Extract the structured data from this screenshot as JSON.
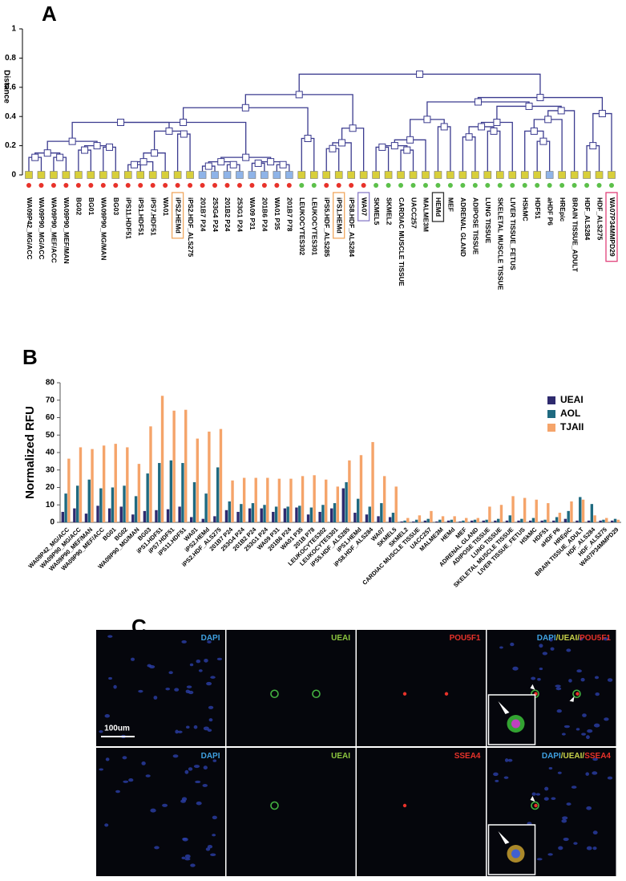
{
  "chart_data": [
    {
      "type": "dendrogram",
      "panel_label": "A",
      "y_label": "Distance",
      "ylim": [
        0,
        1
      ],
      "yticks": [
        0,
        0.2,
        0.4,
        0.6,
        0.8,
        1
      ],
      "leaves": [
        "WA09P42_MG/ACC",
        "WA09P90_MG/ACC",
        "WA09P90_MEF/ACC",
        "WA09P90_MEF/MAN",
        "BG02",
        "BG01",
        "WA09P90_MG/MAN",
        "BG03",
        "iPS11.HDF51",
        "iPS1.HDF51",
        "iPS7.HDF51",
        "WA01",
        "iPS2.HEMd",
        "iPS2.HDF_ALS275",
        "201B7 P24",
        "253G4 P24",
        "201B2 P24",
        "253G1 P24",
        "WA09 P31",
        "201B6 P24",
        "WA01 P35",
        "201B7 P78",
        "LEUKOCYTES302",
        "LEUKOCYTES301",
        "iPS5.HDF_ALS285",
        "iPS1.HEMd",
        "iPS8.HDF_ALS284",
        "WA07",
        "SKMEL5",
        "SKMEL2",
        "CARDIAC MUSCLE TISSUE",
        "UACC257",
        "MALME3M",
        "HEMd",
        "MEF",
        "ADRENAL GLAND",
        "ADIPOSE TISSUE",
        "LUNG TISSUE",
        "SKELETAL MUSCLE TISSUE",
        "LIVER TISSUE_FETUS",
        "HSkMC",
        "HDF51",
        "aHDF P6",
        "HREpic",
        "BRAIN TISSUE_ADULT",
        "HDF_ALS284",
        "HDF_ALS275",
        "WA07P34MMPD29"
      ],
      "leaf_colors": [
        "#d8cf3a",
        "#d8cf3a",
        "#d8cf3a",
        "#d8cf3a",
        "#d8cf3a",
        "#d8cf3a",
        "#d8cf3a",
        "#d8cf3a",
        "#d8cf3a",
        "#d8cf3a",
        "#d8cf3a",
        "#d8cf3a",
        "#d8cf3a",
        "#d8cf3a",
        "#8fb4e8",
        "#8fb4e8",
        "#8fb4e8",
        "#8fb4e8",
        "#8fb4e8",
        "#8fb4e8",
        "#8fb4e8",
        "#8fb4e8",
        "#d8cf3a",
        "#d8cf3a",
        "#d8cf3a",
        "#d8cf3a",
        "#d8cf3a",
        "#d8cf3a",
        "#d8cf3a",
        "#d8cf3a",
        "#d8cf3a",
        "#d8cf3a",
        "#d8cf3a",
        "#d8cf3a",
        "#d8cf3a",
        "#d8cf3a",
        "#d8cf3a",
        "#d8cf3a",
        "#d8cf3a",
        "#d8cf3a",
        "#d8cf3a",
        "#d8cf3a",
        "#8fb4e8",
        "#d8cf3a",
        "#d8cf3a",
        "#d8cf3a",
        "#d8cf3a",
        "#d8cf3a"
      ],
      "dot_colors": [
        "#e8322a",
        "#e8322a",
        "#e8322a",
        "#e8322a",
        "#e8322a",
        "#e8322a",
        "#e8322a",
        "#e8322a",
        "#e8322a",
        "#e8322a",
        "#e8322a",
        "#e8322a",
        "#e8322a",
        "#e8322a",
        "#e8322a",
        "#e8322a",
        "#e8322a",
        "#e8322a",
        "#e8322a",
        "#e8322a",
        "#e8322a",
        "#e8322a",
        "#5cc04a",
        "#5cc04a",
        "#e8322a",
        "#e8322a",
        "#e8322a",
        "#e8322a",
        "#5cc04a",
        "#5cc04a",
        "#5cc04a",
        "#5cc04a",
        "#5cc04a",
        "#5cc04a",
        "#5cc04a",
        "#5cc04a",
        "#5cc04a",
        "#5cc04a",
        "#5cc04a",
        "#5cc04a",
        "#5cc04a",
        "#5cc04a",
        "#5cc04a",
        "#5cc04a",
        "#5cc04a",
        "#5cc04a",
        "#5cc04a",
        "#5cc04a"
      ],
      "merges": [
        [
          0,
          1,
          0.12
        ],
        [
          2,
          3,
          0.12
        ],
        [
          48,
          49,
          0.15
        ],
        [
          4,
          5,
          0.17
        ],
        [
          6,
          7,
          0.19
        ],
        [
          51,
          52,
          0.2
        ],
        [
          50,
          53,
          0.23
        ],
        [
          8,
          9,
          0.07
        ],
        [
          55,
          10,
          0.09
        ],
        [
          56,
          11,
          0.15
        ],
        [
          12,
          13,
          0.28
        ],
        [
          57,
          58,
          0.3
        ],
        [
          54,
          59,
          0.36
        ],
        [
          14,
          15,
          0.06
        ],
        [
          16,
          17,
          0.07
        ],
        [
          61,
          62,
          0.09
        ],
        [
          18,
          19,
          0.08
        ],
        [
          20,
          21,
          0.07
        ],
        [
          64,
          65,
          0.09
        ],
        [
          63,
          66,
          0.12
        ],
        [
          60,
          67,
          0.36
        ],
        [
          22,
          23,
          0.25
        ],
        [
          24,
          25,
          0.18
        ],
        [
          70,
          26,
          0.22
        ],
        [
          71,
          27,
          0.32
        ],
        [
          68,
          69,
          0.46
        ],
        [
          73,
          72,
          0.55
        ],
        [
          28,
          29,
          0.19
        ],
        [
          30,
          31,
          0.17
        ],
        [
          75,
          76,
          0.2
        ],
        [
          77,
          32,
          0.24
        ],
        [
          33,
          34,
          0.33
        ],
        [
          78,
          79,
          0.38
        ],
        [
          35,
          36,
          0.26
        ],
        [
          37,
          38,
          0.3
        ],
        [
          81,
          82,
          0.33
        ],
        [
          39,
          83,
          0.36
        ],
        [
          41,
          42,
          0.23
        ],
        [
          40,
          85,
          0.3
        ],
        [
          86,
          43,
          0.38
        ],
        [
          87,
          44,
          0.44
        ],
        [
          84,
          88,
          0.47
        ],
        [
          80,
          89,
          0.5
        ],
        [
          45,
          46,
          0.2
        ],
        [
          91,
          47,
          0.42
        ],
        [
          90,
          92,
          0.53
        ],
        [
          74,
          93,
          0.69
        ]
      ],
      "link_color": "#3b3b8f",
      "label_boxes": [
        {
          "leaf": 12,
          "color": "#f0a860"
        },
        {
          "leaf": 25,
          "color": "#f0a860"
        },
        {
          "leaf": 27,
          "color": "#8a7cc8"
        },
        {
          "leaf": 33,
          "color": "#333333"
        },
        {
          "leaf": 47,
          "color": "#e0407a"
        }
      ]
    },
    {
      "type": "bar",
      "panel_label": "B",
      "y_label": "Normalized RFU",
      "categories": [
        "WA09P42_MG/ACC",
        "WA09P90_MG/ACC",
        "WA09P90_MEF/MAN",
        "WA09P90_MEF/ACC",
        "BG01",
        "BG02",
        "WA09P90_MG/MAN",
        "BG03",
        "iPS1.HDF51",
        "iPS7.HDF51",
        "iPS11.HDF51",
        "WA01",
        "iPS2.HEMd",
        "iPS2.HDF_ALS275",
        "201B7 P24",
        "253G4 P24",
        "201B2 P24",
        "253G1 P24",
        "WA09 P31",
        "201B6 P24",
        "WA01 P35",
        "201B P78",
        "LEUKOCYTES302",
        "LEUKOCYTES301",
        "iPS5.HDF_ALS285",
        "iPS1.HEMd",
        "iPS8.HDF_ALS284",
        "WA07",
        "SKMEL5",
        "SKMEL2",
        "CARDIAC MUSCLE TISSUE",
        "UACC257",
        "MALME3M",
        "HEMd",
        "MEF",
        "ADRENAL GLAND",
        "ADIPOSE TISSUE",
        "LUNG TISSUE",
        "SKELETAL MUSCLE TISSUE",
        "LIVER TISSUE_FETUS",
        "HSkMC",
        "HDF51",
        "aHDF P6",
        "HREpiC",
        "BRAIN TISSUE_ADULT",
        "HDF_ALS284",
        "HDF_ALS275",
        "WA07P34MMPD29"
      ],
      "series": [
        {
          "name": "UEAI",
          "color": "#2e2a6e",
          "values": [
            6,
            8,
            5,
            9.5,
            8,
            9,
            4.5,
            6.5,
            7,
            7.5,
            9,
            3,
            2,
            3.5,
            7,
            6,
            8,
            8,
            6,
            8,
            8.5,
            4.5,
            6,
            8,
            19.5,
            5.5,
            4.5,
            3.5,
            3,
            0.5,
            0.5,
            1,
            0.5,
            1,
            0.5,
            1,
            1,
            1,
            1,
            1,
            1,
            1,
            1,
            2,
            1,
            1,
            1,
            1
          ]
        },
        {
          "name": "AOL",
          "color": "#1f6a80",
          "values": [
            16.5,
            21,
            24.5,
            19.5,
            20,
            21,
            15,
            28,
            34,
            35.5,
            34,
            23,
            16.5,
            31.5,
            12,
            10.5,
            11,
            10,
            9,
            9,
            9.5,
            8.5,
            10,
            11,
            23,
            13.5,
            9,
            11,
            5.5,
            1,
            1.5,
            2,
            1.5,
            1.5,
            1,
            1.5,
            1.5,
            2,
            4,
            2,
            2.5,
            1.5,
            3,
            6.5,
            14.5,
            10.5,
            1.5,
            2
          ]
        },
        {
          "name": "TJAII",
          "color": "#f5a46a",
          "values": [
            36.5,
            43,
            42,
            44,
            45,
            43,
            33.5,
            55,
            72.5,
            64,
            64.5,
            48,
            52,
            53.5,
            24,
            25.5,
            25.5,
            25.5,
            25,
            25,
            26.5,
            27,
            24.5,
            20.5,
            35.5,
            38.5,
            46,
            26.5,
            20.5,
            2.5,
            4,
            6.5,
            3.5,
            3.5,
            2.5,
            2.5,
            9,
            10,
            15,
            14,
            13,
            11,
            5.5,
            12,
            13,
            4,
            2.5,
            1.5
          ]
        }
      ],
      "ylim": [
        0,
        80
      ],
      "yticks": [
        0,
        10,
        20,
        30,
        40,
        50,
        60,
        70,
        80
      ],
      "legend": "upper right"
    }
  ],
  "figure_c": {
    "panel_label": "C",
    "scale_bar": "100um",
    "rows": [
      [
        [
          {
            "text": "DAPI",
            "color": "#3fa0e0"
          }
        ],
        [
          {
            "text": "UEAI",
            "color": "#8cc63f"
          }
        ],
        [
          {
            "text": "POU5F1",
            "color": "#e8322a"
          }
        ],
        [
          {
            "text": "DAPI",
            "color": "#3fa0e0"
          },
          {
            "text": "/UEAI/",
            "color": "#c8d24a"
          },
          {
            "text": "POU5F1",
            "color": "#e8322a"
          }
        ]
      ],
      [
        [
          {
            "text": "DAPI",
            "color": "#3fa0e0"
          }
        ],
        [
          {
            "text": "UEAI",
            "color": "#8cc63f"
          }
        ],
        [
          {
            "text": "SSEA4",
            "color": "#e8322a"
          }
        ],
        [
          {
            "text": "DAPI",
            "color": "#3fa0e0"
          },
          {
            "text": "/UEAI/",
            "color": "#c8d24a"
          },
          {
            "text": "SSEA4",
            "color": "#e8322a"
          }
        ]
      ]
    ]
  }
}
